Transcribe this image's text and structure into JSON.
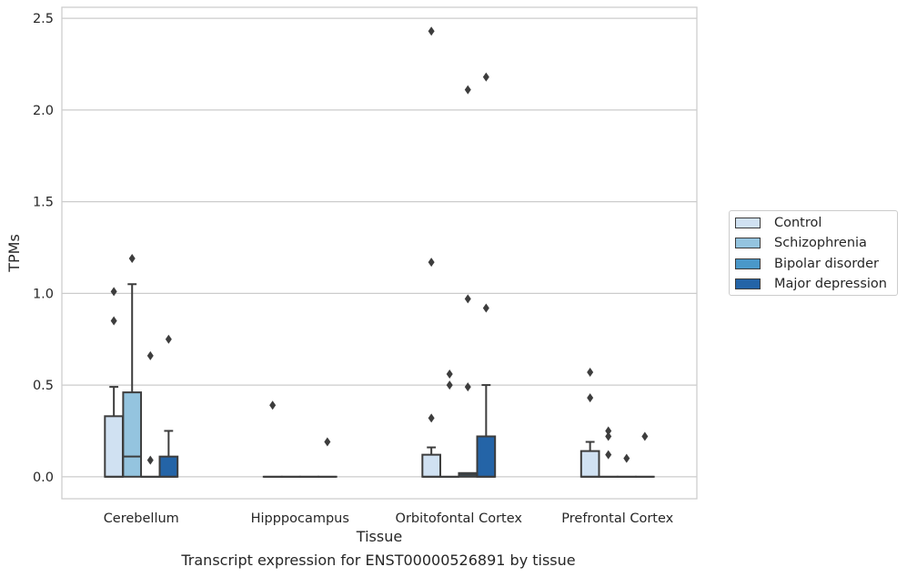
{
  "chart_data": {
    "type": "box",
    "xlabel": "Tissue",
    "ylabel": "TPMs",
    "caption": "Transcript expression for ENST00000526891 by tissue",
    "categories": [
      "Cerebellum",
      "Hipppocampus",
      "Orbitofontal Cortex",
      "Prefrontal Cortex"
    ],
    "ylim": [
      -0.12,
      2.56
    ],
    "yticks": [
      0.0,
      0.5,
      1.0,
      1.5,
      2.0,
      2.5
    ],
    "ytick_labels": [
      "0.0",
      "0.5",
      "1.0",
      "1.5",
      "2.0",
      "2.5"
    ],
    "grid": true,
    "legend_position": "right",
    "series": [
      {
        "name": "Control",
        "color": "#d0e1f2",
        "boxes": [
          {
            "q1": 0.0,
            "median": 0.0,
            "q3": 0.33,
            "whisker_low": 0.0,
            "whisker_high": 0.49,
            "outliers": [
              0.85,
              1.01
            ]
          },
          {
            "q1": 0.0,
            "median": 0.0,
            "q3": 0.0,
            "whisker_low": 0.0,
            "whisker_high": 0.0,
            "outliers": [
              0.39
            ]
          },
          {
            "q1": 0.0,
            "median": 0.0,
            "q3": 0.12,
            "whisker_low": 0.0,
            "whisker_high": 0.16,
            "outliers": [
              0.32,
              1.17,
              2.43
            ]
          },
          {
            "q1": 0.0,
            "median": 0.0,
            "q3": 0.14,
            "whisker_low": 0.0,
            "whisker_high": 0.19,
            "outliers": [
              0.43,
              0.57
            ]
          }
        ]
      },
      {
        "name": "Schizophrenia",
        "color": "#94c4df",
        "boxes": [
          {
            "q1": 0.0,
            "median": 0.11,
            "q3": 0.46,
            "whisker_low": 0.0,
            "whisker_high": 1.05,
            "outliers": [
              1.19
            ]
          },
          {
            "q1": 0.0,
            "median": 0.0,
            "q3": 0.0,
            "whisker_low": 0.0,
            "whisker_high": 0.0,
            "outliers": []
          },
          {
            "q1": 0.0,
            "median": 0.0,
            "q3": 0.0,
            "whisker_low": 0.0,
            "whisker_high": 0.0,
            "outliers": [
              0.5,
              0.56
            ]
          },
          {
            "q1": 0.0,
            "median": 0.0,
            "q3": 0.0,
            "whisker_low": 0.0,
            "whisker_high": 0.0,
            "outliers": [
              0.12,
              0.22,
              0.25
            ]
          }
        ]
      },
      {
        "name": "Bipolar disorder",
        "color": "#4a98c9",
        "boxes": [
          {
            "q1": 0.0,
            "median": 0.0,
            "q3": 0.0,
            "whisker_low": 0.0,
            "whisker_high": 0.0,
            "outliers": [
              0.09,
              0.66
            ]
          },
          {
            "q1": 0.0,
            "median": 0.0,
            "q3": 0.0,
            "whisker_low": 0.0,
            "whisker_high": 0.0,
            "outliers": []
          },
          {
            "q1": 0.0,
            "median": 0.01,
            "q3": 0.02,
            "whisker_low": 0.0,
            "whisker_high": 0.02,
            "outliers": [
              0.49,
              0.97,
              2.11
            ]
          },
          {
            "q1": 0.0,
            "median": 0.0,
            "q3": 0.0,
            "whisker_low": 0.0,
            "whisker_high": 0.0,
            "outliers": [
              0.1
            ]
          }
        ]
      },
      {
        "name": "Major depression",
        "color": "#2464a7",
        "boxes": [
          {
            "q1": 0.0,
            "median": 0.0,
            "q3": 0.11,
            "whisker_low": 0.0,
            "whisker_high": 0.25,
            "outliers": [
              0.75
            ]
          },
          {
            "q1": 0.0,
            "median": 0.0,
            "q3": 0.0,
            "whisker_low": 0.0,
            "whisker_high": 0.0,
            "outliers": [
              0.19
            ]
          },
          {
            "q1": 0.0,
            "median": 0.0,
            "q3": 0.22,
            "whisker_low": 0.0,
            "whisker_high": 0.5,
            "outliers": [
              0.92,
              2.18
            ]
          },
          {
            "q1": 0.0,
            "median": 0.0,
            "q3": 0.0,
            "whisker_low": 0.0,
            "whisker_high": 0.0,
            "outliers": [
              0.22
            ]
          }
        ]
      }
    ]
  }
}
